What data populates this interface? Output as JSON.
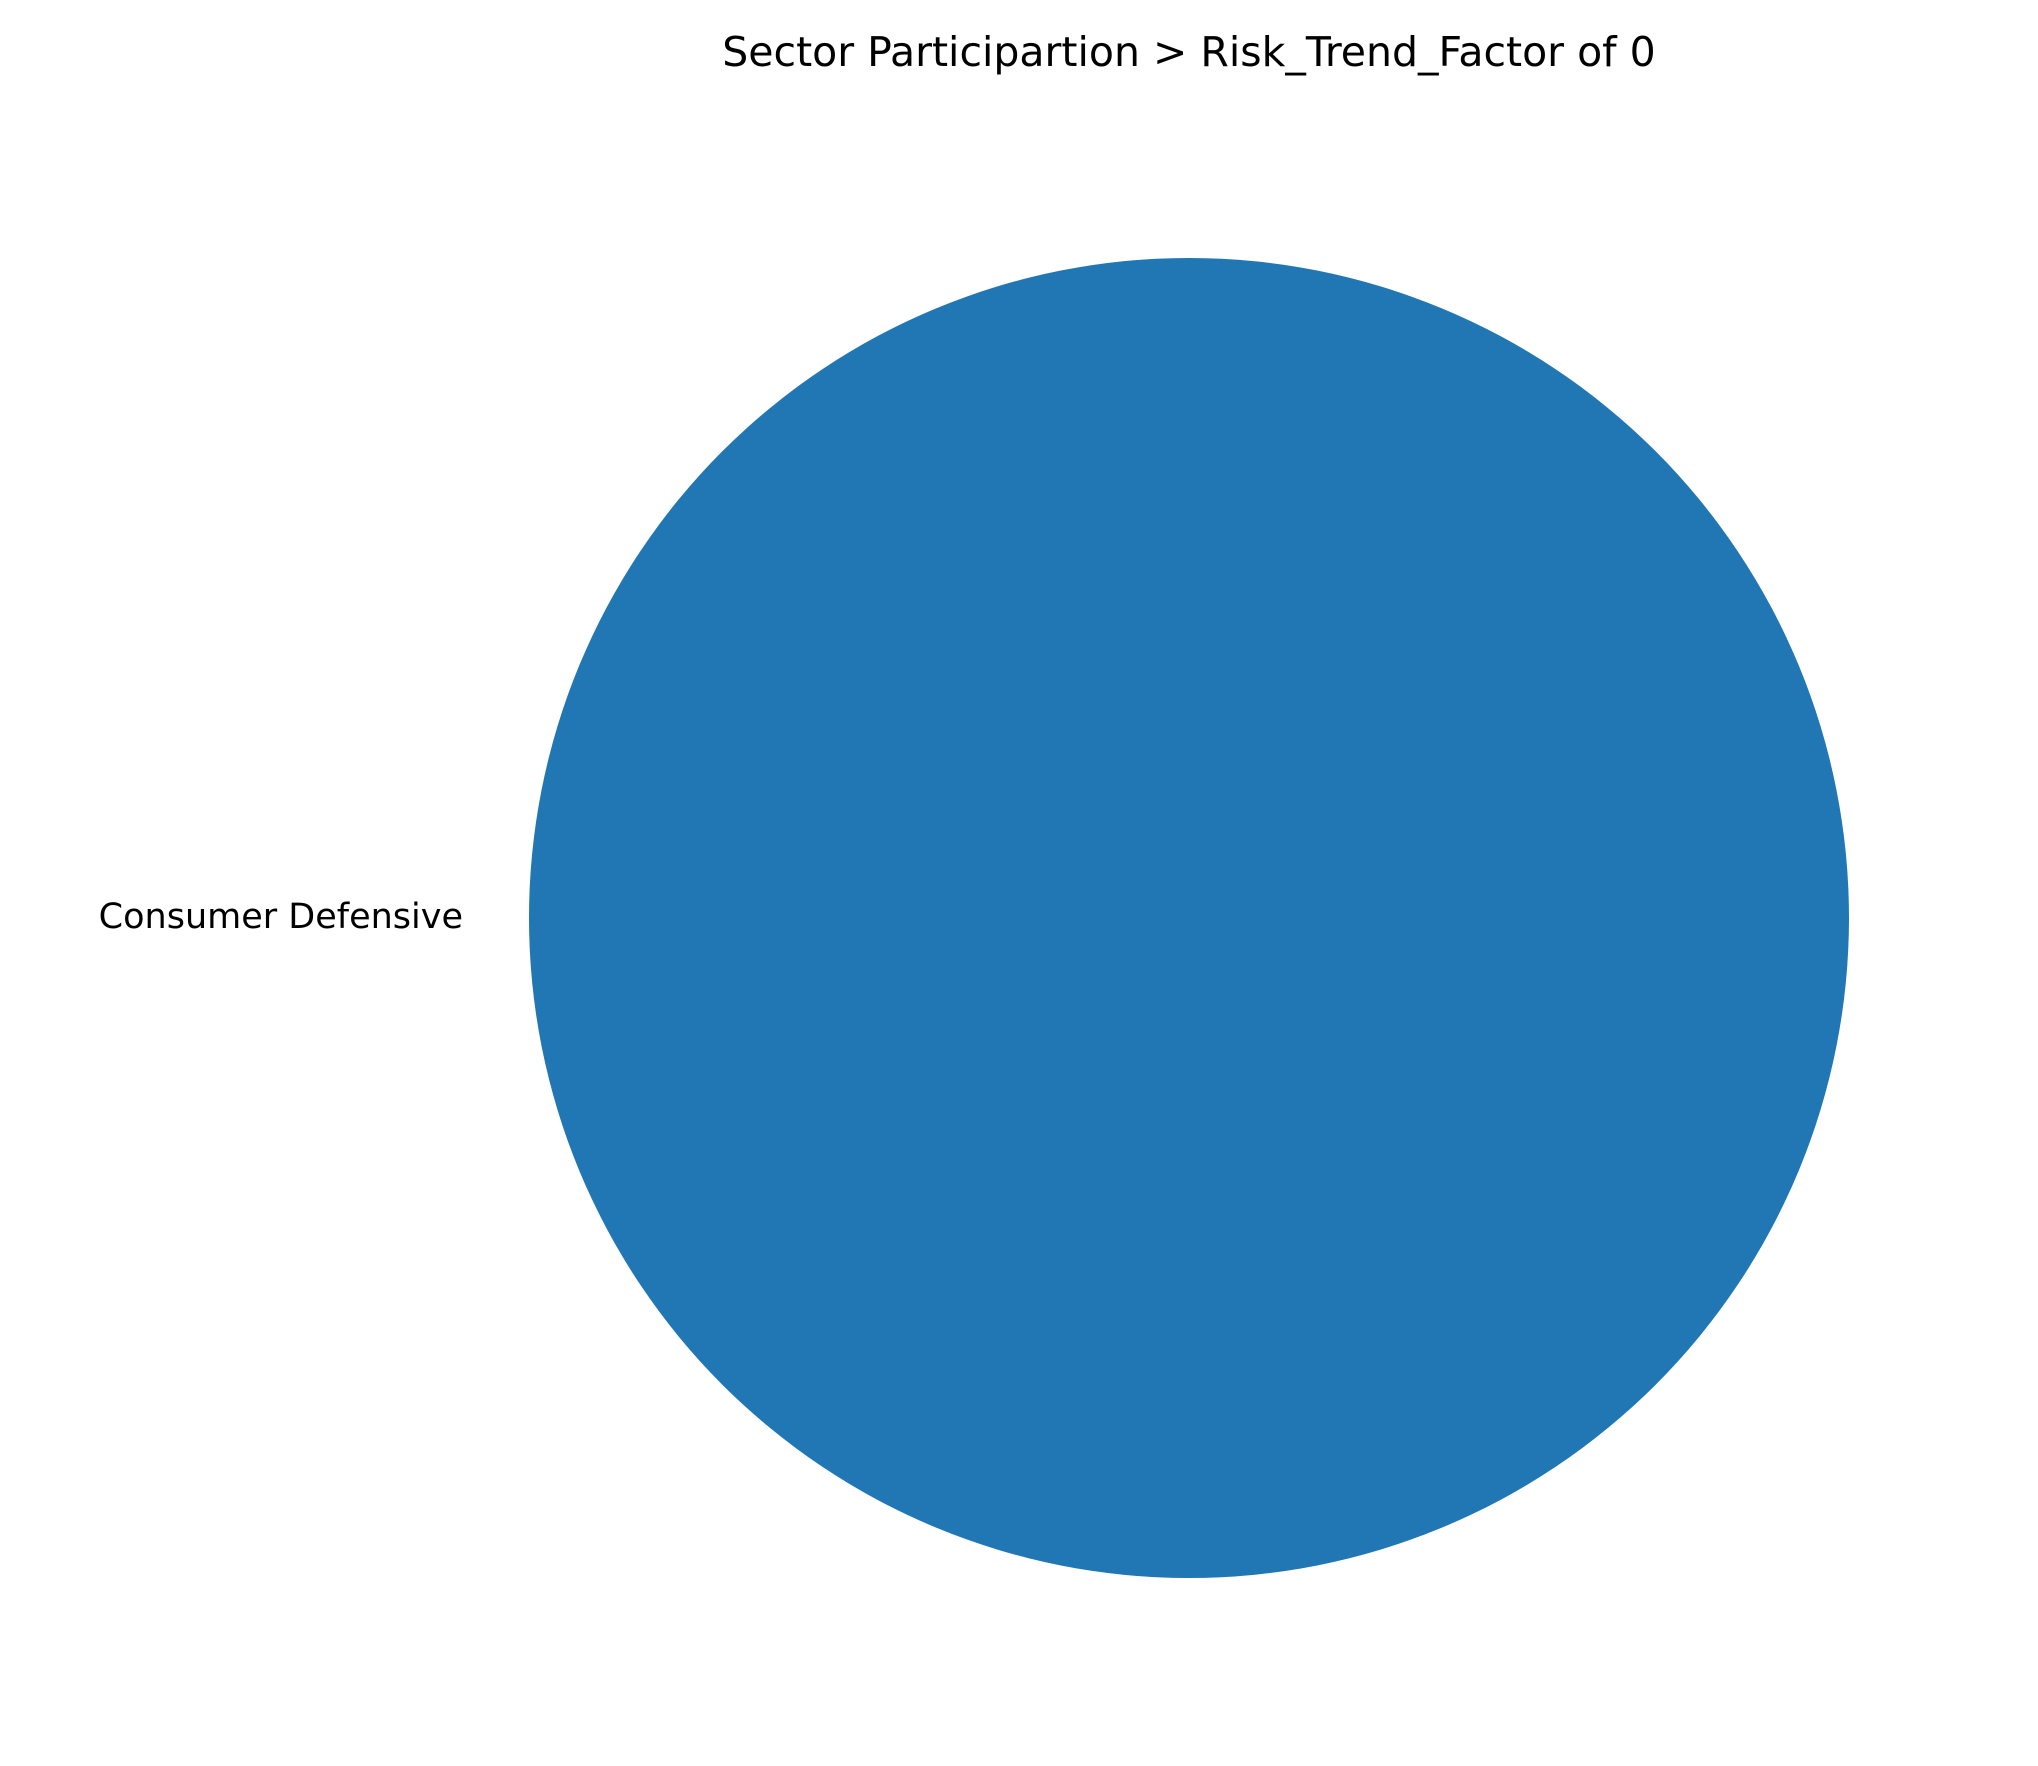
{
  "chart_data": {
    "type": "pie",
    "title": "Sector Participartion > Risk_Trend_Factor of 0",
    "slices": [
      {
        "label": "Consumer Defensive",
        "value": 1,
        "color": "#2077b4"
      }
    ]
  }
}
